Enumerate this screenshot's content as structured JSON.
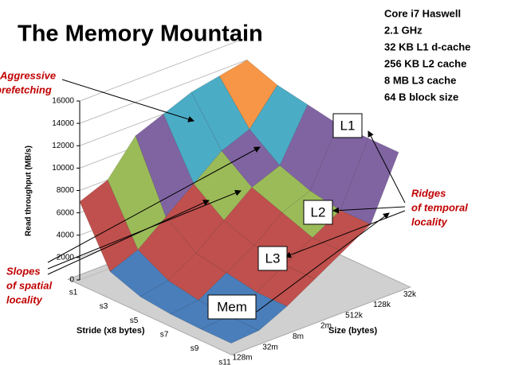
{
  "chart_data": {
    "type": "surface",
    "title": "The Memory Mountain",
    "specs": [
      "Core i7 Haswell",
      "2.1 GHz",
      "32 KB L1 d-cache",
      "256 KB L2 cache",
      "8 MB L3 cache",
      "64 B block size"
    ],
    "z_label": "Read throughput (MB/s)",
    "stride_label": "Stride (x8 bytes)",
    "size_label": "Size (bytes)",
    "strides": [
      "s1",
      "s3",
      "s5",
      "s7",
      "s9",
      "s11"
    ],
    "sizes": [
      "128m",
      "32m",
      "8m",
      "2m",
      "512k",
      "128k",
      "32k"
    ],
    "values": [
      [
        7000,
        8000,
        11000,
        12000,
        13000,
        13500,
        14000
      ],
      [
        2000,
        3000,
        5000,
        7000,
        9000,
        10000,
        13000
      ],
      [
        1000,
        1500,
        3000,
        5000,
        7000,
        8000,
        12500
      ],
      [
        700,
        1000,
        2500,
        4000,
        6000,
        7000,
        12000
      ],
      [
        600,
        800,
        2000,
        3500,
        5000,
        6500,
        12000
      ],
      [
        600,
        800,
        2000,
        3500,
        5000,
        6500,
        12000
      ]
    ],
    "zlim": [
      0,
      16000
    ],
    "zticks": [
      0,
      2000,
      4000,
      6000,
      8000,
      10000,
      12000,
      14000,
      16000
    ],
    "band_colors": [
      "#4a7ebb",
      "#c0504d",
      "#c0504d",
      "#9bbb59",
      "#8064a2",
      "#4bacc6",
      "#f79646",
      "#95b3d7"
    ],
    "annotations": {
      "prefetch": [
        "Aggressive",
        "prefetching"
      ],
      "slopes": [
        "Slopes",
        "of spatial",
        "locality"
      ],
      "ridges": [
        "Ridges",
        "of temporal",
        "locality"
      ],
      "l1": "L1",
      "l2": "L2",
      "l3": "L3",
      "mem": "Mem"
    }
  }
}
